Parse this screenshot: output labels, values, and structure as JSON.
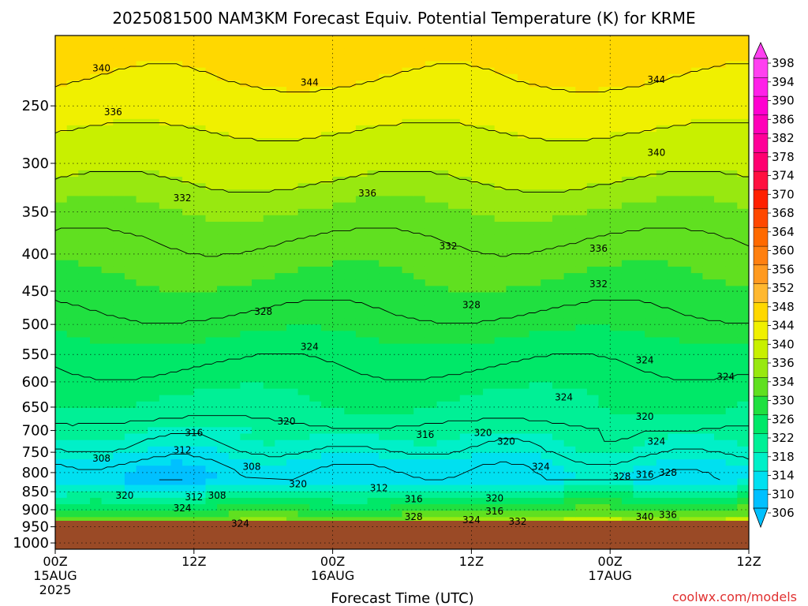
{
  "chart_data": {
    "type": "time-height contour (filled)",
    "title": "2025081500 NAM3KM Forecast Equiv. Potential Temperature (K) for KRME",
    "xlabel": "Forecast Time (UTC)",
    "ylabel": "",
    "x_ticks": [
      {
        "hour": 0,
        "label": "00Z",
        "sub1": "15AUG",
        "sub2": "2025"
      },
      {
        "hour": 12,
        "label": "12Z",
        "sub1": "",
        "sub2": ""
      },
      {
        "hour": 24,
        "label": "00Z",
        "sub1": "16AUG",
        "sub2": ""
      },
      {
        "hour": 36,
        "label": "12Z",
        "sub1": "",
        "sub2": ""
      },
      {
        "hour": 48,
        "label": "00Z",
        "sub1": "17AUG",
        "sub2": ""
      },
      {
        "hour": 60,
        "label": "12Z",
        "sub1": "",
        "sub2": ""
      }
    ],
    "xlim": [
      0,
      60
    ],
    "y_ticks": [
      250,
      300,
      350,
      400,
      450,
      500,
      550,
      600,
      650,
      700,
      750,
      800,
      850,
      900,
      950,
      1000
    ],
    "ylim_hPa": [
      200,
      1020
    ],
    "y_scale": "log-pressure (inverted)",
    "grid": true,
    "surface_level_hPa": 962,
    "colorbar": {
      "levels": [
        306,
        310,
        314,
        318,
        322,
        326,
        330,
        334,
        336,
        340,
        344,
        348,
        352,
        356,
        360,
        364,
        368,
        370,
        374,
        378,
        382,
        386,
        390,
        394,
        398
      ],
      "colors": [
        "#00c0ff",
        "#00e0f0",
        "#00f0c8",
        "#00f096",
        "#00e868",
        "#20e040",
        "#60e020",
        "#98e810",
        "#c8f000",
        "#f0f000",
        "#ffd800",
        "#ffb830",
        "#ff9a20",
        "#ff8010",
        "#ff6a00",
        "#ff4800",
        "#ff2000",
        "#ff1040",
        "#ff0070",
        "#ff0098",
        "#ff00b8",
        "#ff00d0",
        "#ff20e8",
        "#ff40f0"
      ]
    },
    "contour_labels": [
      {
        "t": 4,
        "p": 222,
        "v": "340"
      },
      {
        "t": 22,
        "p": 232,
        "v": "344"
      },
      {
        "t": 52,
        "p": 230,
        "v": "344"
      },
      {
        "t": 5,
        "p": 255,
        "v": "336"
      },
      {
        "t": 52,
        "p": 290,
        "v": "340"
      },
      {
        "t": 27,
        "p": 330,
        "v": "336"
      },
      {
        "t": 11,
        "p": 335,
        "v": "332"
      },
      {
        "t": 47,
        "p": 393,
        "v": "336"
      },
      {
        "t": 34,
        "p": 390,
        "v": "332"
      },
      {
        "t": 47,
        "p": 440,
        "v": "332"
      },
      {
        "t": 18,
        "p": 480,
        "v": "328"
      },
      {
        "t": 36,
        "p": 470,
        "v": "328"
      },
      {
        "t": 22,
        "p": 537,
        "v": "324"
      },
      {
        "t": 51,
        "p": 560,
        "v": "324"
      },
      {
        "t": 58,
        "p": 590,
        "v": "324"
      },
      {
        "t": 44,
        "p": 630,
        "v": "324"
      },
      {
        "t": 20,
        "p": 680,
        "v": "320"
      },
      {
        "t": 51,
        "p": 670,
        "v": "320"
      },
      {
        "t": 12,
        "p": 705,
        "v": "316"
      },
      {
        "t": 32,
        "p": 710,
        "v": "316"
      },
      {
        "t": 37,
        "p": 705,
        "v": "320"
      },
      {
        "t": 39,
        "p": 725,
        "v": "320"
      },
      {
        "t": 52,
        "p": 725,
        "v": "324"
      },
      {
        "t": 11,
        "p": 745,
        "v": "312"
      },
      {
        "t": 4,
        "p": 765,
        "v": "308"
      },
      {
        "t": 17,
        "p": 785,
        "v": "308"
      },
      {
        "t": 42,
        "p": 785,
        "v": "324"
      },
      {
        "t": 49,
        "p": 810,
        "v": "328"
      },
      {
        "t": 51,
        "p": 805,
        "v": "316"
      },
      {
        "t": 53,
        "p": 800,
        "v": "328"
      },
      {
        "t": 21,
        "p": 830,
        "v": "320"
      },
      {
        "t": 28,
        "p": 840,
        "v": "312"
      },
      {
        "t": 6,
        "p": 860,
        "v": "320"
      },
      {
        "t": 12,
        "p": 865,
        "v": "312"
      },
      {
        "t": 14,
        "p": 860,
        "v": "308"
      },
      {
        "t": 31,
        "p": 870,
        "v": "316"
      },
      {
        "t": 38,
        "p": 868,
        "v": "320"
      },
      {
        "t": 11,
        "p": 895,
        "v": "324"
      },
      {
        "t": 38,
        "p": 905,
        "v": "316"
      },
      {
        "t": 31,
        "p": 920,
        "v": "328"
      },
      {
        "t": 36,
        "p": 930,
        "v": "324"
      },
      {
        "t": 40,
        "p": 935,
        "v": "332"
      },
      {
        "t": 51,
        "p": 920,
        "v": "340"
      },
      {
        "t": 53,
        "p": 915,
        "v": "336"
      },
      {
        "t": 16,
        "p": 940,
        "v": "324"
      }
    ]
  },
  "watermark": "coolwx.com/models"
}
